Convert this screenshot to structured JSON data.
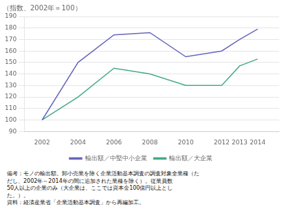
{
  "chart_data": {
    "type": "line",
    "title": "（指数、2002年＝100）",
    "x": [
      2002,
      2004,
      2006,
      2008,
      2010,
      2012,
      2013,
      2014
    ],
    "series": [
      {
        "name": "輸出額／中堅中小企業",
        "color": "#6666bb",
        "values": [
          100,
          150,
          174,
          176,
          155,
          160,
          170,
          179
        ]
      },
      {
        "name": "輸出額／大企業",
        "color": "#44aa88",
        "values": [
          100,
          120,
          145,
          140,
          130,
          130,
          147,
          153
        ]
      }
    ],
    "xlim": [
      2001.0,
      2015.2
    ],
    "xticks": [
      2002,
      2004,
      2006,
      2008,
      2010,
      2012,
      2013,
      2014
    ],
    "ylim": [
      90,
      190
    ],
    "yticks": [
      90,
      100,
      110,
      120,
      130,
      140,
      150,
      160,
      170,
      180,
      190
    ],
    "grid": true,
    "legend": "bottom",
    "annotations": [
      "備考：モノの輸出額。卸小売業を除く企業活動基本調査の調査対象全業種（た",
      "だし、2002年～2014年の間に追加された業種を除く）。従業員数",
      "50人以上の企業のみ（大企業は、ここでは資本金100億円以上とし",
      "た。）。",
      "資料：経済産業省「企業活動基本調査」から再編加工。"
    ]
  }
}
